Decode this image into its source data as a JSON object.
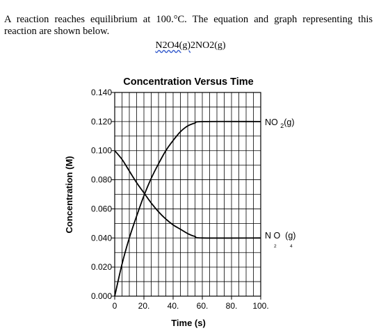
{
  "intro_text": "A reaction reaches equilibrium at 100.°C. The equation and graph representing this reaction are shown below.",
  "equation": {
    "reactant": "N2O4(g)",
    "arrow": "",
    "product": "2NO2(g)"
  },
  "chart_data": {
    "type": "line",
    "title": "Concentration Versus Time",
    "xlabel": "Time (s)",
    "ylabel": "Concentration (M)",
    "xlim": [
      0,
      100
    ],
    "ylim": [
      0,
      0.14
    ],
    "grid": true,
    "x_ticks": [
      0,
      20,
      40,
      60,
      80,
      100
    ],
    "x_tick_labels": [
      "0",
      "20.",
      "40.",
      "60.",
      "80.",
      "100."
    ],
    "y_ticks": [
      0,
      0.02,
      0.04,
      0.06,
      0.08,
      0.1,
      0.12,
      0.14
    ],
    "y_tick_labels": [
      "0.000",
      "0.020",
      "0.040",
      "0.060",
      "0.080",
      "0.100",
      "0.120",
      "0.140"
    ],
    "series": [
      {
        "name": "NO 2(g)",
        "name_main": "NO ",
        "name_sub": "2",
        "name_tail": "(g)",
        "color": "#000000",
        "x": [
          0,
          5,
          10,
          15,
          20,
          25,
          30,
          35,
          40,
          45,
          50,
          55,
          60,
          100
        ],
        "y": [
          0,
          0.022,
          0.04,
          0.055,
          0.069,
          0.081,
          0.091,
          0.1,
          0.107,
          0.113,
          0.117,
          0.119,
          0.12,
          0.12
        ]
      },
      {
        "name": "N O (g) 2 4",
        "name_main": "N O  (g)",
        "name_sub": "2",
        "name_sub2": "4",
        "color": "#000000",
        "x": [
          0,
          5,
          10,
          15,
          20,
          25,
          30,
          35,
          40,
          45,
          50,
          55,
          60,
          100
        ],
        "y": [
          0.1,
          0.094,
          0.086,
          0.078,
          0.071,
          0.064,
          0.058,
          0.053,
          0.049,
          0.046,
          0.043,
          0.041,
          0.04,
          0.04
        ]
      }
    ]
  }
}
